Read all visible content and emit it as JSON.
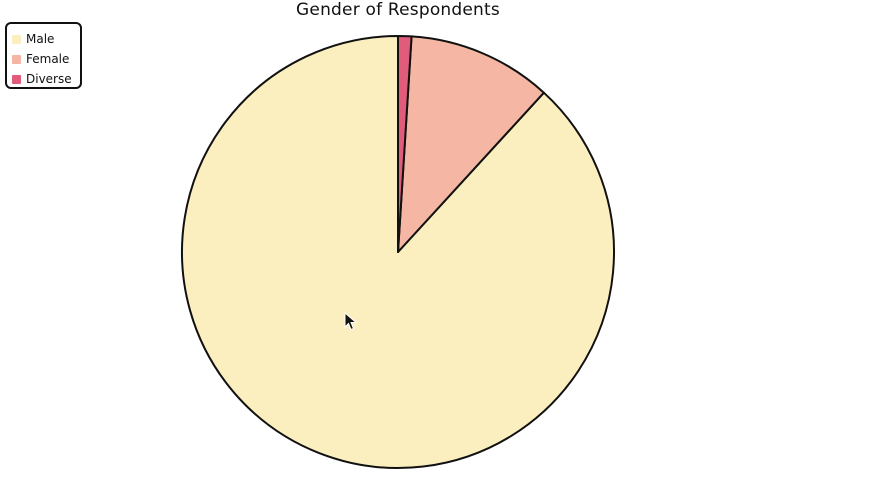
{
  "chart_data": {
    "type": "pie",
    "title": "Gender of Respondents",
    "start": "top",
    "direction": "counterclockwise",
    "series": [
      {
        "labels": [
          "Male",
          "Female",
          "Diverse"
        ],
        "values": [
          88.2,
          10.8,
          1.0
        ],
        "colors": [
          "#fcefbf",
          "#f5b7a3",
          "#e05c7a"
        ]
      }
    ],
    "legend_position": "top-left"
  }
}
